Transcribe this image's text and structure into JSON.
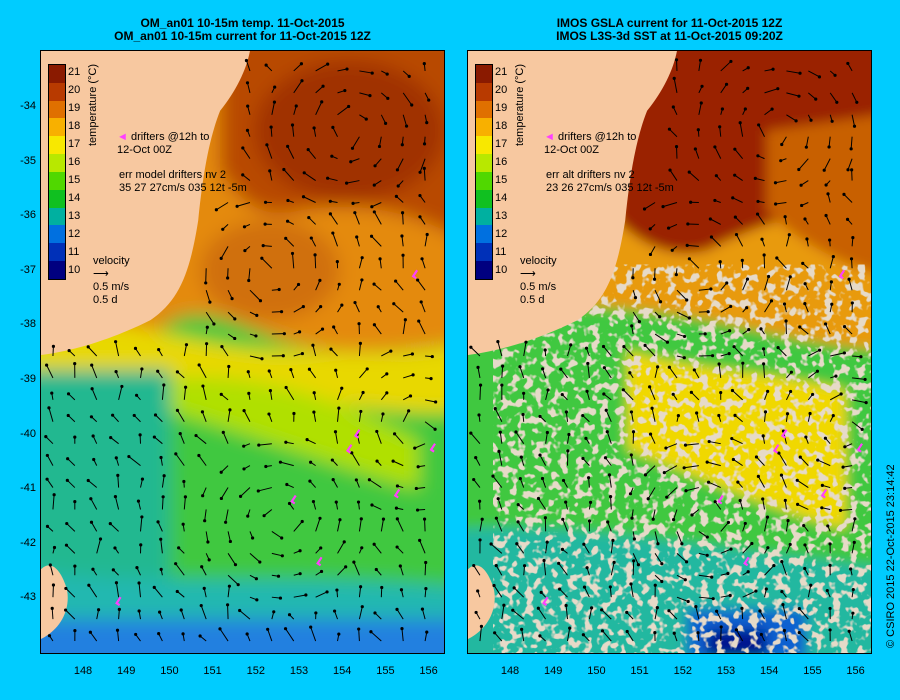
{
  "left_panel": {
    "title_line1": "OM_an01 10-15m temp. 11-Oct-2015",
    "title_line2": "OM_an01 10-15m current for 11-Oct-2015 12Z",
    "drifters_line1": "drifters @12h to",
    "drifters_line2": "12-Oct 00Z",
    "err_line1": "err model drifters nv 2",
    "err_line2": "35 27 27cm/s 035 12t -5m"
  },
  "right_panel": {
    "title_line1": "IMOS GSLA current for 11-Oct-2015 12Z",
    "title_line2": "IMOS L3S-3d SST at 11-Oct-2015 09:20Z",
    "drifters_line1": "drifters @12h to",
    "drifters_line2": "12-Oct 00Z",
    "err_line1": "err alt drifters nv 2",
    "err_line2": "23 26 27cm/s 035 12t -5m"
  },
  "colorbar": {
    "label": "temperature (°C)",
    "ticks": [
      "21",
      "20",
      "19",
      "18",
      "17",
      "16",
      "15",
      "14",
      "13",
      "12",
      "11",
      "10"
    ],
    "colors": [
      "#8a1a00",
      "#b83a00",
      "#e07000",
      "#f8b000",
      "#f8e800",
      "#b8e800",
      "#50d800",
      "#10c020",
      "#00b0a0",
      "#0070e0",
      "#0030b8",
      "#000080"
    ]
  },
  "velocity_legend": {
    "label": "velocity",
    "speed": "0.5 m/s",
    "duration": "0.5 d"
  },
  "y_axis": {
    "labels": [
      "-34",
      "-35",
      "-36",
      "-37",
      "-38",
      "-39",
      "-40",
      "-41",
      "-42",
      "-43"
    ]
  },
  "x_axis": {
    "labels": [
      "148",
      "149",
      "150",
      "151",
      "152",
      "153",
      "154",
      "155",
      "156"
    ]
  },
  "credit": "© CSIRO 2015   22-Oct-2015 23:14:42",
  "colors": {
    "background": "#00ccff",
    "land": "#f7c8a0",
    "cloud_mask": "#c9b293",
    "drifter": "#ff40ff"
  }
}
